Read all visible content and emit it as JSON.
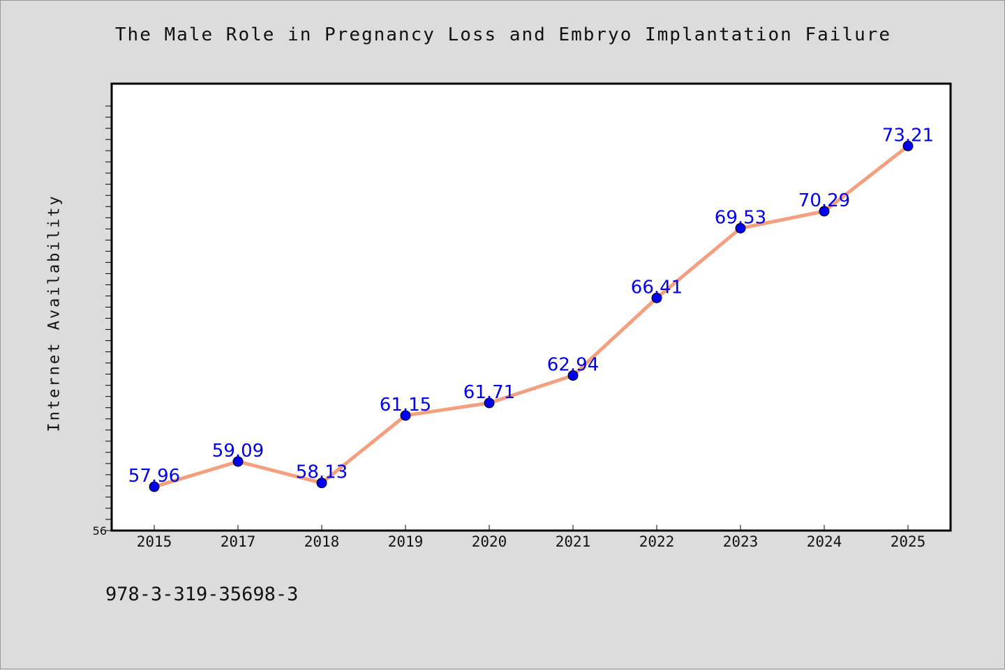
{
  "chart_data": {
    "type": "line",
    "title": "The Male Role in Pregnancy Loss and Embryo Implantation Failure",
    "xlabel": "",
    "ylabel": "Internet Availability",
    "categories": [
      "2015",
      "2017",
      "2018",
      "2019",
      "2020",
      "2021",
      "2022",
      "2023",
      "2024",
      "2025"
    ],
    "series": [
      {
        "values": [
          57.96,
          59.09,
          58.13,
          61.15,
          61.71,
          62.94,
          66.41,
          69.53,
          70.29,
          73.21
        ],
        "labels": [
          "57.96",
          "59.09",
          "58.13",
          "61.15",
          "61.71",
          "62.94",
          "66.41",
          "69.53",
          "70.29",
          "73.21"
        ]
      }
    ],
    "ylim": [
      56,
      76
    ],
    "y_tick_label": "56",
    "line_color": "#f4a080",
    "marker_color": "#0000ee",
    "label_color": "#0000ee",
    "grid": false
  },
  "footer": {
    "code": "978-3-319-35698-3"
  }
}
